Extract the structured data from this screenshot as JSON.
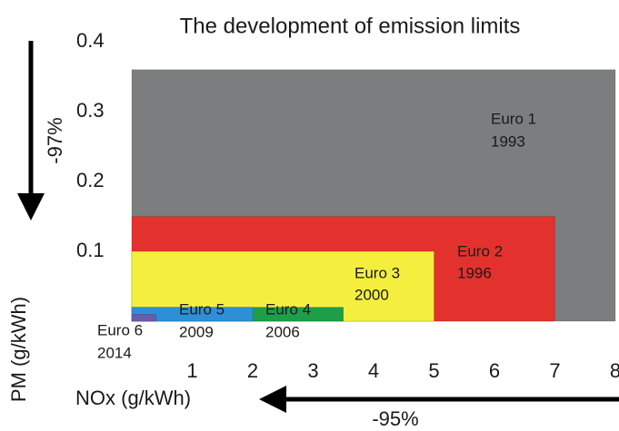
{
  "chart_data": {
    "type": "nested-rectangles",
    "title": "The development of emission limits",
    "x_label": "NOx (g/kWh)",
    "y_label": "PM (g/kWh)",
    "x_annotation": "-95%",
    "y_annotation": "-97%",
    "xlim": [
      0,
      8
    ],
    "xticks": [
      1,
      2,
      3,
      4,
      5,
      6,
      7,
      8
    ],
    "ylim": [
      0,
      0.4
    ],
    "yticks": [
      0.1,
      0.2,
      0.3,
      0.4
    ],
    "series": [
      {
        "name": "Euro 1",
        "year": "1993",
        "x": 8,
        "y": 0.36,
        "color": "#7b7d7f"
      },
      {
        "name": "Euro 2",
        "year": "1996",
        "x": 7,
        "y": 0.15,
        "color": "#e3322d"
      },
      {
        "name": "Euro 3",
        "year": "2000",
        "x": 5,
        "y": 0.1,
        "color": "#f4ef3f"
      },
      {
        "name": "Euro 4",
        "year": "2006",
        "x": 3.5,
        "y": 0.02,
        "color": "#1f9e4a"
      },
      {
        "name": "Euro 5",
        "year": "2009",
        "x": 2,
        "y": 0.02,
        "color": "#2f8fd5"
      },
      {
        "name": "Euro 6",
        "year": "2014",
        "x": 0.4,
        "y": 0.01,
        "color": "#6a5ca8"
      }
    ]
  }
}
